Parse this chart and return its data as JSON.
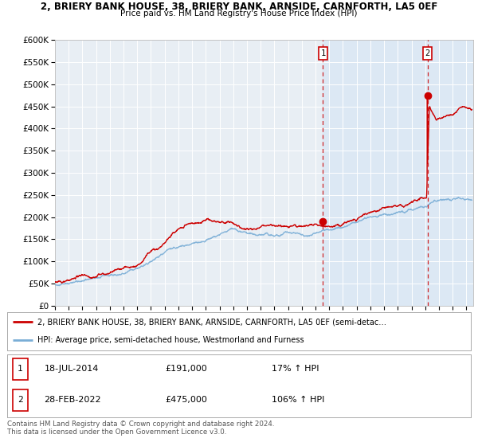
{
  "title": "2, BRIERY BANK HOUSE, 38, BRIERY BANK, ARNSIDE, CARNFORTH, LA5 0EF",
  "subtitle": "Price paid vs. HM Land Registry's House Price Index (HPI)",
  "legend_label_red": "2, BRIERY BANK HOUSE, 38, BRIERY BANK, ARNSIDE, CARNFORTH, LA5 0EF (semi-detac…",
  "legend_label_blue": "HPI: Average price, semi-detached house, Westmorland and Furness",
  "transaction_1_date": "18-JUL-2014",
  "transaction_1_price": 191000,
  "transaction_1_pct": "17% ↑ HPI",
  "transaction_2_date": "28-FEB-2022",
  "transaction_2_price": 475000,
  "transaction_2_pct": "106% ↑ HPI",
  "footnote": "Contains HM Land Registry data © Crown copyright and database right 2024.\nThis data is licensed under the Open Government Licence v3.0.",
  "xmin": 1995.0,
  "xmax": 2025.5,
  "ymin": 0,
  "ymax": 600000,
  "yticks": [
    0,
    50000,
    100000,
    150000,
    200000,
    250000,
    300000,
    350000,
    400000,
    450000,
    500000,
    550000,
    600000
  ],
  "red_color": "#cc0000",
  "blue_color": "#7aaed6",
  "plot_bg": "#e8eef4",
  "shaded_bg": "#dce8f4",
  "vline1_x": 2014.54,
  "vline2_x": 2022.16,
  "marker1_x": 2014.54,
  "marker1_y": 191000,
  "marker2_x": 2022.16,
  "marker2_y": 475000
}
